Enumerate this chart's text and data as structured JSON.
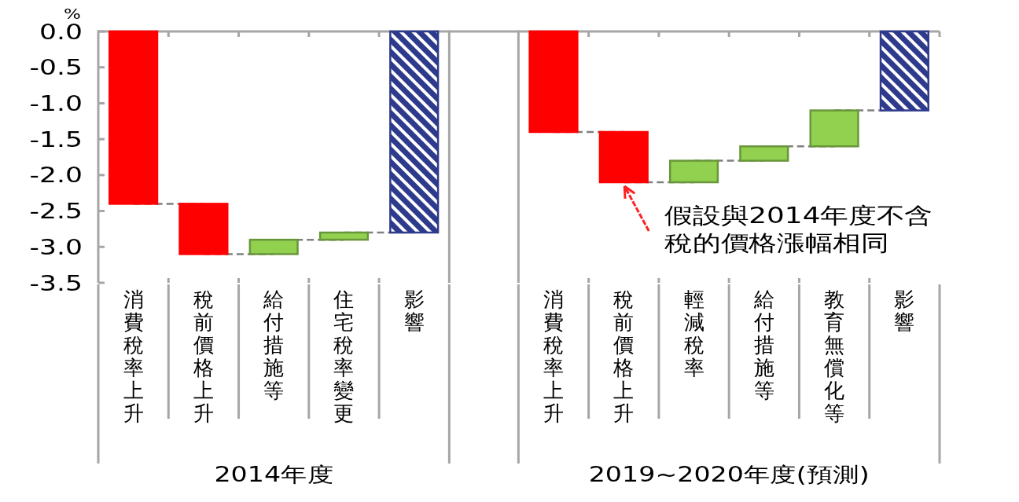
{
  "chart_data": [
    {
      "type": "bar",
      "ylabel": "%",
      "xlabel": "2014年度",
      "categories": [
        "消費稅率上升",
        "稅前價格上升",
        "給付措施等",
        "住宅稅率變更",
        "影響"
      ],
      "values": [
        -2.4,
        -0.7,
        0.2,
        0.1,
        -2.8
      ],
      "base": [
        0,
        -2.4,
        -3.1,
        -2.9,
        0
      ],
      "colors": [
        "#ff0000",
        "#ff0000",
        "#92d050",
        "#92d050",
        "#2e3a8c"
      ],
      "ylim": [
        -3.5,
        0
      ],
      "yticks": [
        {
          "value": 0,
          "label": "0.0"
        },
        -0.5,
        {
          "value": -1,
          "label": "-1.0"
        },
        -1.5,
        {
          "value": -2,
          "label": "-2.0"
        },
        -2.5,
        {
          "value": -3,
          "label": "-3.0"
        },
        -3.5
      ]
    },
    {
      "type": "bar",
      "xlabel": "2019~2020年度(預測)",
      "categories": [
        "消費稅率上升",
        "稅前價格上升",
        "輕減稅率",
        "給付措施等",
        "教育無償化等",
        "影響"
      ],
      "values": [
        -1.4,
        -0.7,
        0.3,
        0.2,
        0.5,
        -1.1
      ],
      "base": [
        0,
        -1.4,
        -2.1,
        -1.8,
        -1.6,
        0
      ],
      "colors": [
        "#ff0000",
        "#ff0000",
        "#92d050",
        "#92d050",
        "#92d050",
        "#2e3a8c"
      ],
      "ylim": [
        -3.5,
        0
      ],
      "tick_labels": "x",
      "annotations": [
        {
          "text": "假設與2014年度不含稅的價格漲幅相同",
          "x": "稅前價格上升",
          "y": -2.1
        }
      ]
    }
  ]
}
